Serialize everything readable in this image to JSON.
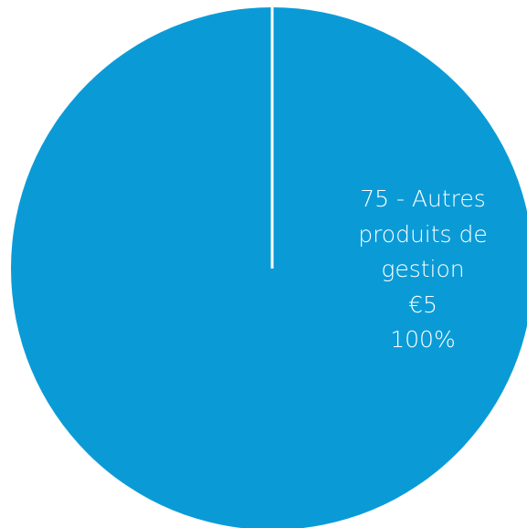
{
  "chart_data": {
    "type": "pie",
    "categories": [
      "75 - Autres produits de gestion"
    ],
    "values": [
      5
    ],
    "value_labels": [
      "€5"
    ],
    "percents": [
      {
        "value": 100,
        "label": "100%"
      }
    ],
    "colors": [
      "#0a9bd7"
    ]
  }
}
